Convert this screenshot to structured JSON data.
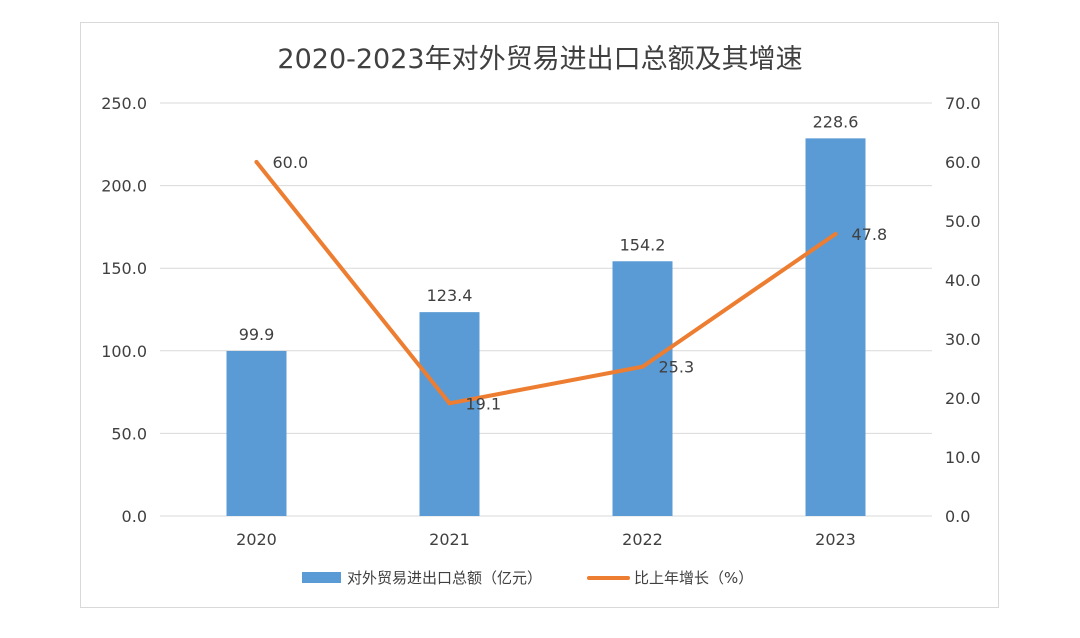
{
  "chart_data": {
    "type": "bar",
    "title": "2020-2023年对外贸易进出口总额及其增速",
    "categories": [
      "2020",
      "2021",
      "2022",
      "2023"
    ],
    "series": [
      {
        "name": "对外贸易进出口总额（亿元）",
        "type": "bar",
        "axis": "left",
        "color": "#5b9bd5",
        "values": [
          99.9,
          123.4,
          154.2,
          228.6
        ],
        "labels": [
          "99.9",
          "123.4",
          "154.2",
          "228.6"
        ]
      },
      {
        "name": "比上年增长（%）",
        "type": "line",
        "axis": "right",
        "color": "#ed7d31",
        "values": [
          60.0,
          19.1,
          25.3,
          47.8
        ],
        "labels": [
          "60.0",
          "19.1",
          "25.3",
          "47.8"
        ]
      }
    ],
    "y_left": {
      "range": [
        0,
        250
      ],
      "ticks": [
        0,
        50,
        100,
        150,
        200,
        250
      ],
      "tick_labels": [
        "0.0",
        "50.0",
        "100.0",
        "150.0",
        "200.0",
        "250.0"
      ]
    },
    "y_right": {
      "range": [
        0,
        70
      ],
      "ticks": [
        0,
        10,
        20,
        30,
        40,
        50,
        60,
        70
      ],
      "tick_labels": [
        "0.0",
        "10.0",
        "20.0",
        "30.0",
        "40.0",
        "50.0",
        "60.0",
        "70.0"
      ]
    },
    "grid": true,
    "legend_position": "bottom",
    "grid_color": "#d9d9d9",
    "text_color": "#404040"
  }
}
